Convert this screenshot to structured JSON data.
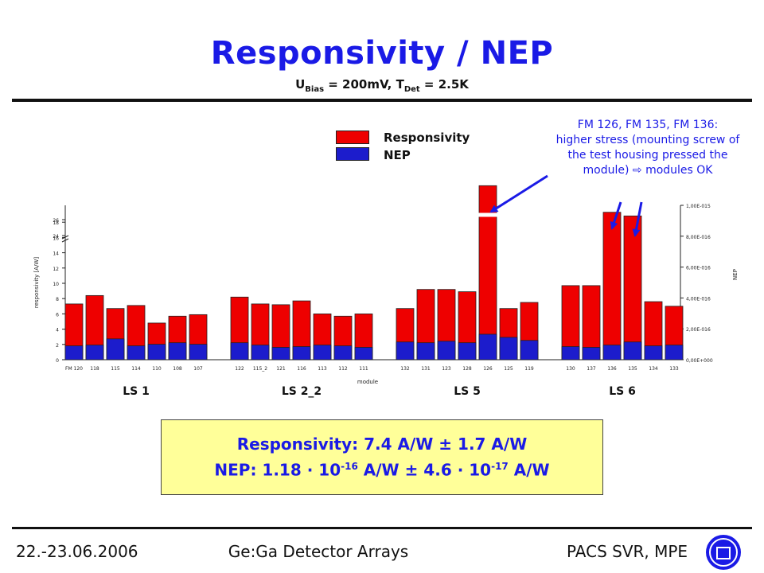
{
  "header": {
    "title": "Responsivity / NEP",
    "subtitle_u": "U",
    "subtitle_u_sub": "Bias",
    "subtitle_mid": " = 200mV, T",
    "subtitle_t_sub": "Det",
    "subtitle_end": " = 2.5K"
  },
  "annotation": {
    "line1": "FM 126, FM 135, FM 136:",
    "line2": "higher stress (mounting screw of",
    "line3": "the test housing pressed the",
    "line4": "module) ⇨ modules OK"
  },
  "legend": {
    "responsivity": "Responsivity",
    "nep": "NEP"
  },
  "summary": {
    "line1": "Responsivity: 7.4 A/W ± 1.7 A/W",
    "nep_a": "NEP: 1.18 · 10",
    "nep_exp1": "-16",
    "nep_b": " A/W ± 4.6 · 10",
    "nep_exp2": "-17",
    "nep_c": " A/W"
  },
  "footer": {
    "date": "22.-23.06.2006",
    "center": "Ge:Ga Detector Arrays",
    "right": "PACS SVR, MPE"
  },
  "colors": {
    "title": "#1a1ae6",
    "responsivity": "#ee0000",
    "nep": "#1c1ccc",
    "summary_bg": "#ffff99"
  },
  "chart_data": {
    "type": "bar",
    "xlabel": "module",
    "ylabel": "responsivity [A/W]",
    "y2label": "NEP",
    "yticks": [
      "0",
      "2",
      "4",
      "6",
      "8",
      "10",
      "12",
      "14",
      "16",
      "18",
      "24",
      "26"
    ],
    "y2ticks": [
      "0,00E+000",
      "2,00E-016",
      "4,00E-016",
      "6,00E-016",
      "8,00E-016",
      "1,00E-015"
    ],
    "groups": [
      {
        "label": "LS 1",
        "categories": [
          "FM 120",
          "118",
          "115",
          "114",
          "110",
          "108",
          "107"
        ],
        "responsivity": [
          7.3,
          8.4,
          6.7,
          7.1,
          4.8,
          5.7,
          5.9
        ],
        "nep": [
          9e-17,
          9.5e-17,
          1.35e-16,
          9e-17,
          1e-16,
          1.1e-16,
          1e-16
        ]
      },
      {
        "label": "LS 2_2",
        "categories": [
          "122",
          "115_2",
          "121",
          "116",
          "113",
          "112",
          "111"
        ],
        "responsivity": [
          8.2,
          7.3,
          7.2,
          7.7,
          6.0,
          5.7,
          6.0
        ],
        "nep": [
          1.1e-16,
          9.5e-17,
          8e-17,
          8.5e-17,
          9.5e-17,
          9e-17,
          8e-17
        ]
      },
      {
        "label": "LS 5",
        "categories": [
          "132",
          "131",
          "123",
          "128",
          "126",
          "125",
          "119"
        ],
        "responsivity": [
          6.7,
          9.2,
          9.2,
          8.9,
          25.5,
          6.7,
          7.5
        ],
        "nep": [
          1.15e-16,
          1.1e-16,
          1.2e-16,
          1.1e-16,
          1.65e-16,
          1.45e-16,
          1.25e-16
        ]
      },
      {
        "label": "LS 6",
        "categories": [
          "130",
          "137",
          "136",
          "135",
          "134",
          "133"
        ],
        "responsivity": [
          9.7,
          9.7,
          19.7,
          18.9,
          7.6,
          7.0
        ],
        "nep": [
          8.5e-17,
          8e-17,
          9.5e-17,
          1.15e-16,
          9e-17,
          9.5e-17
        ]
      }
    ],
    "ylim": [
      0,
      27
    ],
    "y2lim": [
      0,
      1e-15
    ]
  }
}
